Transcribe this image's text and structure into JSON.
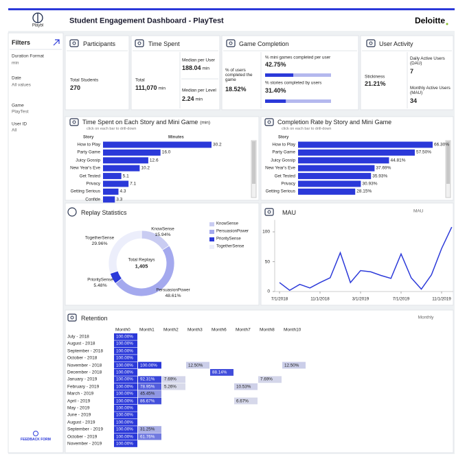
{
  "header": {
    "logo": "Playbl",
    "title": "Student Engagement Dashboard - PlayTest",
    "brand": "Deloitte"
  },
  "filters": {
    "title": "Filters",
    "items": [
      {
        "label": "Duration Format",
        "value": "min"
      },
      {
        "label": "Date",
        "value": "All values"
      },
      {
        "label": "Game",
        "value": "PlayTest"
      },
      {
        "label": "User ID",
        "value": "All"
      }
    ],
    "feedback": "FEEDBACK FORM"
  },
  "participants": {
    "title": "Participants",
    "label": "Total Students",
    "value": "270"
  },
  "time_spent": {
    "title": "Time Spent",
    "total": {
      "label": "Total",
      "value": "111,070",
      "unit": "min"
    },
    "median_user": {
      "label": "Median per User",
      "value": "188.04",
      "unit": "min"
    },
    "median_level": {
      "label": "Median per Level",
      "value": "2.24",
      "unit": "min"
    }
  },
  "game_completion": {
    "title": "Game Completion",
    "completed_game": {
      "label": "% of users completed the game",
      "value": "18.52%"
    },
    "mini_games": {
      "label": "% mini games completed per user",
      "value": 42.75,
      "value_label": "42.75%",
      "xlim": [
        0,
        100
      ]
    },
    "stories": {
      "label": "% stories completed by users",
      "value": 31.4,
      "value_label": "31.40%",
      "xlim": [
        0,
        100
      ]
    }
  },
  "user_activity": {
    "title": "User Activity",
    "stickiness": {
      "label": "Stickiness",
      "value": "21.21%"
    },
    "dau": {
      "label": "Daily Active Users (DAU)",
      "value": "7"
    },
    "mau": {
      "label": "Monthly Active Users (MAU)",
      "value": "34"
    }
  },
  "time_chart": {
    "type": "bar",
    "title": "Time Spent on Each Story and Mini Game",
    "unit_note": "(min)",
    "subtitle": "click on each bar to drill-down",
    "category_header": "Story",
    "value_header": "Minutes",
    "categories": [
      "How to Play",
      "Party Game",
      "Juicy Gossip",
      "New Year's Eve",
      "Get Tested",
      "Privacy",
      "Getting Serious",
      "Confide"
    ],
    "values": [
      30.2,
      16.0,
      12.6,
      10.2,
      5.1,
      7.1,
      4.3,
      3.3
    ],
    "value_labels": [
      "30.2",
      "16.0",
      "12.6",
      "10.2",
      "5.1",
      "7.1",
      "4.3",
      "3.3"
    ],
    "color": "#2b39d9"
  },
  "completion_chart": {
    "type": "bar",
    "title": "Completion Rate by Story and Mini Game",
    "subtitle": "click on each bar to drill-down",
    "category_header": "Story",
    "categories": [
      "How to Play",
      "Party Game",
      "Juicy Gossip",
      "New Year's Eve",
      "Get Tested",
      "Privacy",
      "Getting Serious"
    ],
    "values": [
      66.3,
      57.5,
      44.81,
      37.69,
      35.93,
      30.93,
      28.15
    ],
    "value_labels": [
      "66.30%",
      "57.50%",
      "44.81%",
      "37.69%",
      "35.93%",
      "30.93%",
      "28.15%"
    ],
    "color": "#2b39d9"
  },
  "replay_chart": {
    "type": "donut",
    "title": "Replay Statistics",
    "center_label": "Total Replays",
    "center_value": "1,405",
    "categories": [
      "KnowSense",
      "PersuasionPower",
      "PrioritySense",
      "TogetherSense"
    ],
    "values": [
      15.94,
      48.61,
      5.48,
      29.96
    ],
    "value_labels": [
      "15.94%",
      "48.61%",
      "5.48%",
      "29.96%"
    ],
    "colors": [
      "#c9ccf2",
      "#a4a9ee",
      "#2b39d9",
      "#eceefb"
    ]
  },
  "mau_chart": {
    "type": "line",
    "title": "MAU",
    "series_label": "MAU",
    "x": [
      "7/1/2018",
      "8/1/2018",
      "9/1/2018",
      "10/1/2018",
      "11/1/2018",
      "12/1/2018",
      "1/1/2019",
      "2/1/2019",
      "3/1/2019",
      "4/1/2019",
      "5/1/2019",
      "6/1/2019",
      "7/1/2019",
      "8/1/2019",
      "9/1/2019",
      "10/1/2019",
      "11/1/2019",
      "12/1/2019"
    ],
    "values": [
      15,
      2,
      12,
      6,
      15,
      23,
      65,
      15,
      35,
      33,
      27,
      22,
      63,
      23,
      4,
      28,
      72,
      108
    ],
    "color": "#2b39d9",
    "ylim": [
      0,
      120
    ],
    "yticks": [
      0,
      50,
      100
    ],
    "xticks": [
      "7/1/2018",
      "11/1/2018",
      "3/1/2019",
      "7/1/2019",
      "11/1/2019"
    ]
  },
  "retention": {
    "type": "heatmap",
    "title": "Retention",
    "granularity": "Monthly",
    "columns": [
      "Month0",
      "Month1",
      "Month2",
      "Month3",
      "Month6",
      "Month7",
      "Month8",
      "Month10"
    ],
    "rows": [
      "July - 2018",
      "August - 2018",
      "September - 2018",
      "October - 2018",
      "November - 2018",
      "December - 2018",
      "January - 2019",
      "February - 2019",
      "March - 2019",
      "April - 2019",
      "May - 2019",
      "June - 2019",
      "August - 2019",
      "September - 2019",
      "October - 2019",
      "November - 2019"
    ],
    "values": [
      [
        100,
        null,
        null,
        null,
        null,
        null,
        null,
        null
      ],
      [
        100,
        null,
        null,
        null,
        null,
        null,
        null,
        null
      ],
      [
        100,
        null,
        null,
        null,
        null,
        null,
        null,
        null
      ],
      [
        100,
        null,
        null,
        null,
        null,
        null,
        null,
        null
      ],
      [
        100,
        100,
        null,
        12.5,
        null,
        null,
        null,
        12.5
      ],
      [
        100,
        null,
        null,
        null,
        88.14,
        null,
        null,
        null
      ],
      [
        100,
        92.31,
        7.69,
        null,
        null,
        null,
        7.69,
        null
      ],
      [
        100,
        78.95,
        5.26,
        null,
        null,
        10.53,
        null,
        null
      ],
      [
        100,
        45.45,
        null,
        null,
        null,
        null,
        null,
        null
      ],
      [
        100,
        86.67,
        null,
        null,
        null,
        6.67,
        null,
        null
      ],
      [
        100,
        null,
        null,
        null,
        null,
        null,
        null,
        null
      ],
      [
        100,
        null,
        null,
        null,
        null,
        null,
        null,
        null
      ],
      [
        100,
        null,
        null,
        null,
        null,
        null,
        null,
        null
      ],
      [
        100,
        31.25,
        null,
        null,
        null,
        null,
        null,
        null
      ],
      [
        100,
        61.76,
        null,
        null,
        null,
        null,
        null,
        null
      ],
      [
        100,
        null,
        null,
        null,
        null,
        null,
        null,
        null
      ]
    ],
    "value_labels": [
      [
        "100.00%",
        null,
        null,
        null,
        null,
        null,
        null,
        null
      ],
      [
        "100.00%",
        null,
        null,
        null,
        null,
        null,
        null,
        null
      ],
      [
        "100.00%",
        null,
        null,
        null,
        null,
        null,
        null,
        null
      ],
      [
        "100.00%",
        null,
        null,
        null,
        null,
        null,
        null,
        null
      ],
      [
        "100.00%",
        "100.00%",
        null,
        "12.50%",
        null,
        null,
        null,
        "12.50%"
      ],
      [
        "100.00%",
        null,
        null,
        null,
        "88.14%",
        null,
        null,
        null
      ],
      [
        "100.00%",
        "92.31%",
        "7.69%",
        null,
        null,
        null,
        "7.69%",
        null
      ],
      [
        "100.00%",
        "78.95%",
        "5.26%",
        null,
        null,
        "10.53%",
        null,
        null
      ],
      [
        "100.00%",
        "45.45%",
        null,
        null,
        null,
        null,
        null,
        null
      ],
      [
        "100.00%",
        "86.67%",
        null,
        null,
        null,
        "6.67%",
        null,
        null
      ],
      [
        "100.00%",
        null,
        null,
        null,
        null,
        null,
        null,
        null
      ],
      [
        "100.00%",
        null,
        null,
        null,
        null,
        null,
        null,
        null
      ],
      [
        "100.00%",
        null,
        null,
        null,
        null,
        null,
        null,
        null
      ],
      [
        "100.00%",
        "31.25%",
        null,
        null,
        null,
        null,
        null,
        null
      ],
      [
        "100.00%",
        "61.76%",
        null,
        null,
        null,
        null,
        null,
        null
      ],
      [
        "100.00%",
        null,
        null,
        null,
        null,
        null,
        null,
        null
      ]
    ]
  }
}
